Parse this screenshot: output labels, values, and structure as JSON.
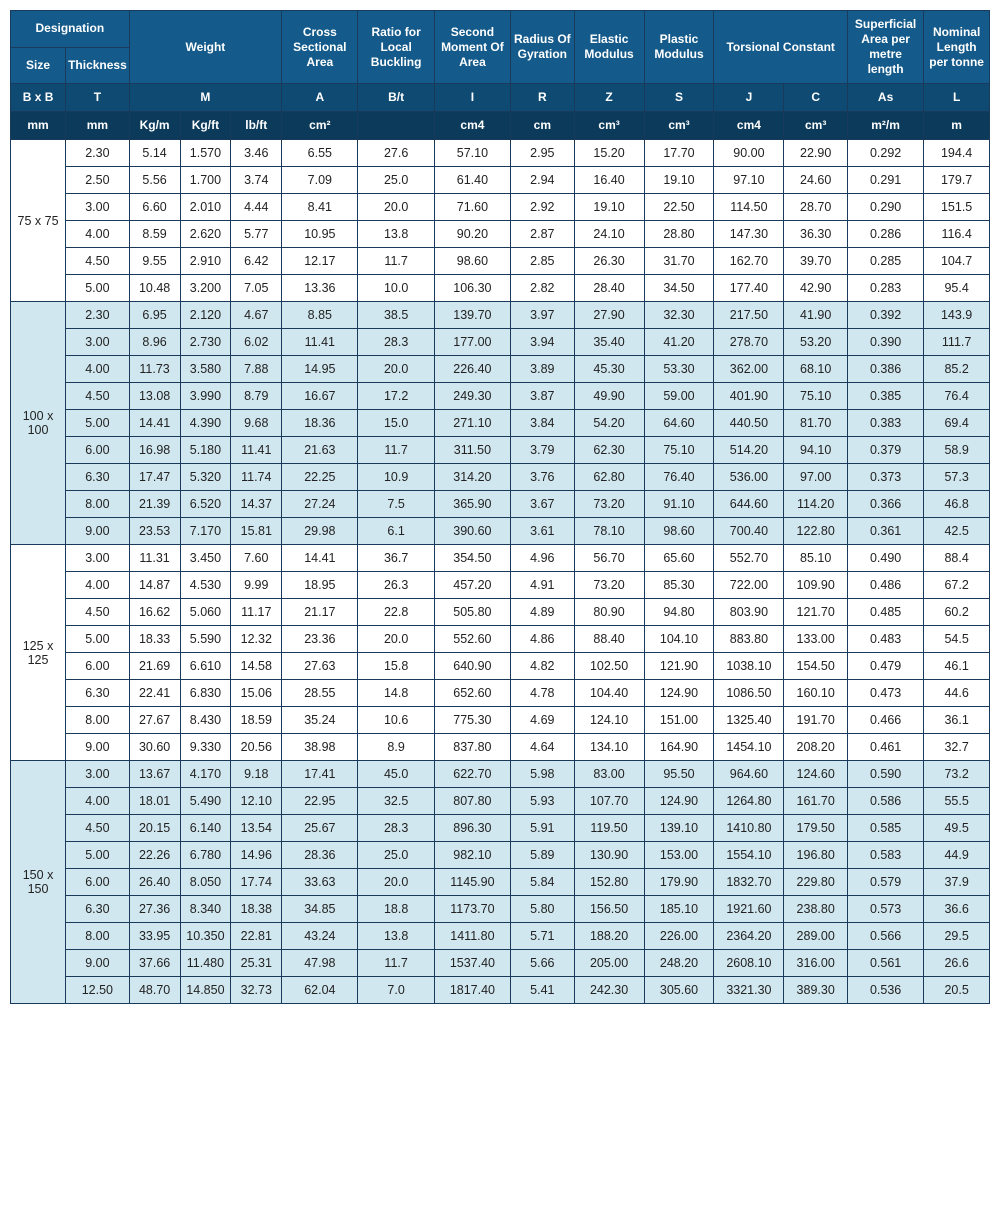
{
  "header": {
    "row1": {
      "designation": "Designation",
      "weight": "Weight",
      "cross": "Cross Sectional Area",
      "ratio": "Ratio for Local Buckling",
      "second": "Second Moment Of Area",
      "radius": "Radius Of Gyration",
      "elastic": "Elastic Modulus",
      "plastic": "Plastic Modulus",
      "torsional": "Torsional Constant",
      "superficial": "Superficial Area per metre length",
      "nominal": "Nominal Length per tonne"
    },
    "row1b": {
      "size": "Size",
      "thickness": "Thickness"
    },
    "symbols": {
      "bxb": "B x B",
      "t": "T",
      "m": "M",
      "a": "A",
      "bt": "B/t",
      "i": "I",
      "r": "R",
      "z": "Z",
      "s": "S",
      "j": "J",
      "c": "C",
      "as": "As",
      "l": "L"
    },
    "units": {
      "mm1": "mm",
      "mm2": "mm",
      "kgm": "Kg/m",
      "kgft": "Kg/ft",
      "lbft": "lb/ft",
      "cm2": "cm²",
      "blank": "",
      "cm4a": "cm4",
      "cm": "cm",
      "cm3a": "cm³",
      "cm3b": "cm³",
      "cm4b": "cm4",
      "cm3c": "cm³",
      "m2m": "m²/m",
      "m": "m"
    }
  },
  "groups": [
    {
      "size": "75 x 75",
      "alt": false,
      "rows": [
        [
          "2.30",
          "5.14",
          "1.570",
          "3.46",
          "6.55",
          "27.6",
          "57.10",
          "2.95",
          "15.20",
          "17.70",
          "90.00",
          "22.90",
          "0.292",
          "194.4"
        ],
        [
          "2.50",
          "5.56",
          "1.700",
          "3.74",
          "7.09",
          "25.0",
          "61.40",
          "2.94",
          "16.40",
          "19.10",
          "97.10",
          "24.60",
          "0.291",
          "179.7"
        ],
        [
          "3.00",
          "6.60",
          "2.010",
          "4.44",
          "8.41",
          "20.0",
          "71.60",
          "2.92",
          "19.10",
          "22.50",
          "114.50",
          "28.70",
          "0.290",
          "151.5"
        ],
        [
          "4.00",
          "8.59",
          "2.620",
          "5.77",
          "10.95",
          "13.8",
          "90.20",
          "2.87",
          "24.10",
          "28.80",
          "147.30",
          "36.30",
          "0.286",
          "116.4"
        ],
        [
          "4.50",
          "9.55",
          "2.910",
          "6.42",
          "12.17",
          "11.7",
          "98.60",
          "2.85",
          "26.30",
          "31.70",
          "162.70",
          "39.70",
          "0.285",
          "104.7"
        ],
        [
          "5.00",
          "10.48",
          "3.200",
          "7.05",
          "13.36",
          "10.0",
          "106.30",
          "2.82",
          "28.40",
          "34.50",
          "177.40",
          "42.90",
          "0.283",
          "95.4"
        ]
      ]
    },
    {
      "size": "100 x 100",
      "alt": true,
      "rows": [
        [
          "2.30",
          "6.95",
          "2.120",
          "4.67",
          "8.85",
          "38.5",
          "139.70",
          "3.97",
          "27.90",
          "32.30",
          "217.50",
          "41.90",
          "0.392",
          "143.9"
        ],
        [
          "3.00",
          "8.96",
          "2.730",
          "6.02",
          "11.41",
          "28.3",
          "177.00",
          "3.94",
          "35.40",
          "41.20",
          "278.70",
          "53.20",
          "0.390",
          "111.7"
        ],
        [
          "4.00",
          "11.73",
          "3.580",
          "7.88",
          "14.95",
          "20.0",
          "226.40",
          "3.89",
          "45.30",
          "53.30",
          "362.00",
          "68.10",
          "0.386",
          "85.2"
        ],
        [
          "4.50",
          "13.08",
          "3.990",
          "8.79",
          "16.67",
          "17.2",
          "249.30",
          "3.87",
          "49.90",
          "59.00",
          "401.90",
          "75.10",
          "0.385",
          "76.4"
        ],
        [
          "5.00",
          "14.41",
          "4.390",
          "9.68",
          "18.36",
          "15.0",
          "271.10",
          "3.84",
          "54.20",
          "64.60",
          "440.50",
          "81.70",
          "0.383",
          "69.4"
        ],
        [
          "6.00",
          "16.98",
          "5.180",
          "11.41",
          "21.63",
          "11.7",
          "311.50",
          "3.79",
          "62.30",
          "75.10",
          "514.20",
          "94.10",
          "0.379",
          "58.9"
        ],
        [
          "6.30",
          "17.47",
          "5.320",
          "11.74",
          "22.25",
          "10.9",
          "314.20",
          "3.76",
          "62.80",
          "76.40",
          "536.00",
          "97.00",
          "0.373",
          "57.3"
        ],
        [
          "8.00",
          "21.39",
          "6.520",
          "14.37",
          "27.24",
          "7.5",
          "365.90",
          "3.67",
          "73.20",
          "91.10",
          "644.60",
          "114.20",
          "0.366",
          "46.8"
        ],
        [
          "9.00",
          "23.53",
          "7.170",
          "15.81",
          "29.98",
          "6.1",
          "390.60",
          "3.61",
          "78.10",
          "98.60",
          "700.40",
          "122.80",
          "0.361",
          "42.5"
        ]
      ]
    },
    {
      "size": "125 x 125",
      "alt": false,
      "rows": [
        [
          "3.00",
          "11.31",
          "3.450",
          "7.60",
          "14.41",
          "36.7",
          "354.50",
          "4.96",
          "56.70",
          "65.60",
          "552.70",
          "85.10",
          "0.490",
          "88.4"
        ],
        [
          "4.00",
          "14.87",
          "4.530",
          "9.99",
          "18.95",
          "26.3",
          "457.20",
          "4.91",
          "73.20",
          "85.30",
          "722.00",
          "109.90",
          "0.486",
          "67.2"
        ],
        [
          "4.50",
          "16.62",
          "5.060",
          "11.17",
          "21.17",
          "22.8",
          "505.80",
          "4.89",
          "80.90",
          "94.80",
          "803.90",
          "121.70",
          "0.485",
          "60.2"
        ],
        [
          "5.00",
          "18.33",
          "5.590",
          "12.32",
          "23.36",
          "20.0",
          "552.60",
          "4.86",
          "88.40",
          "104.10",
          "883.80",
          "133.00",
          "0.483",
          "54.5"
        ],
        [
          "6.00",
          "21.69",
          "6.610",
          "14.58",
          "27.63",
          "15.8",
          "640.90",
          "4.82",
          "102.50",
          "121.90",
          "1038.10",
          "154.50",
          "0.479",
          "46.1"
        ],
        [
          "6.30",
          "22.41",
          "6.830",
          "15.06",
          "28.55",
          "14.8",
          "652.60",
          "4.78",
          "104.40",
          "124.90",
          "1086.50",
          "160.10",
          "0.473",
          "44.6"
        ],
        [
          "8.00",
          "27.67",
          "8.430",
          "18.59",
          "35.24",
          "10.6",
          "775.30",
          "4.69",
          "124.10",
          "151.00",
          "1325.40",
          "191.70",
          "0.466",
          "36.1"
        ],
        [
          "9.00",
          "30.60",
          "9.330",
          "20.56",
          "38.98",
          "8.9",
          "837.80",
          "4.64",
          "134.10",
          "164.90",
          "1454.10",
          "208.20",
          "0.461",
          "32.7"
        ]
      ]
    },
    {
      "size": "150 x 150",
      "alt": true,
      "rows": [
        [
          "3.00",
          "13.67",
          "4.170",
          "9.18",
          "17.41",
          "45.0",
          "622.70",
          "5.98",
          "83.00",
          "95.50",
          "964.60",
          "124.60",
          "0.590",
          "73.2"
        ],
        [
          "4.00",
          "18.01",
          "5.490",
          "12.10",
          "22.95",
          "32.5",
          "807.80",
          "5.93",
          "107.70",
          "124.90",
          "1264.80",
          "161.70",
          "0.586",
          "55.5"
        ],
        [
          "4.50",
          "20.15",
          "6.140",
          "13.54",
          "25.67",
          "28.3",
          "896.30",
          "5.91",
          "119.50",
          "139.10",
          "1410.80",
          "179.50",
          "0.585",
          "49.5"
        ],
        [
          "5.00",
          "22.26",
          "6.780",
          "14.96",
          "28.36",
          "25.0",
          "982.10",
          "5.89",
          "130.90",
          "153.00",
          "1554.10",
          "196.80",
          "0.583",
          "44.9"
        ],
        [
          "6.00",
          "26.40",
          "8.050",
          "17.74",
          "33.63",
          "20.0",
          "1145.90",
          "5.84",
          "152.80",
          "179.90",
          "1832.70",
          "229.80",
          "0.579",
          "37.9"
        ],
        [
          "6.30",
          "27.36",
          "8.340",
          "18.38",
          "34.85",
          "18.8",
          "1173.70",
          "5.80",
          "156.50",
          "185.10",
          "1921.60",
          "238.80",
          "0.573",
          "36.6"
        ],
        [
          "8.00",
          "33.95",
          "10.350",
          "22.81",
          "43.24",
          "13.8",
          "1411.80",
          "5.71",
          "188.20",
          "226.00",
          "2364.20",
          "289.00",
          "0.566",
          "29.5"
        ],
        [
          "9.00",
          "37.66",
          "11.480",
          "25.31",
          "47.98",
          "11.7",
          "1537.40",
          "5.66",
          "205.00",
          "248.20",
          "2608.10",
          "316.00",
          "0.561",
          "26.6"
        ],
        [
          "12.50",
          "48.70",
          "14.850",
          "32.73",
          "62.04",
          "7.0",
          "1817.40",
          "5.41",
          "242.30",
          "305.60",
          "3321.30",
          "389.30",
          "0.536",
          "20.5"
        ]
      ]
    }
  ]
}
